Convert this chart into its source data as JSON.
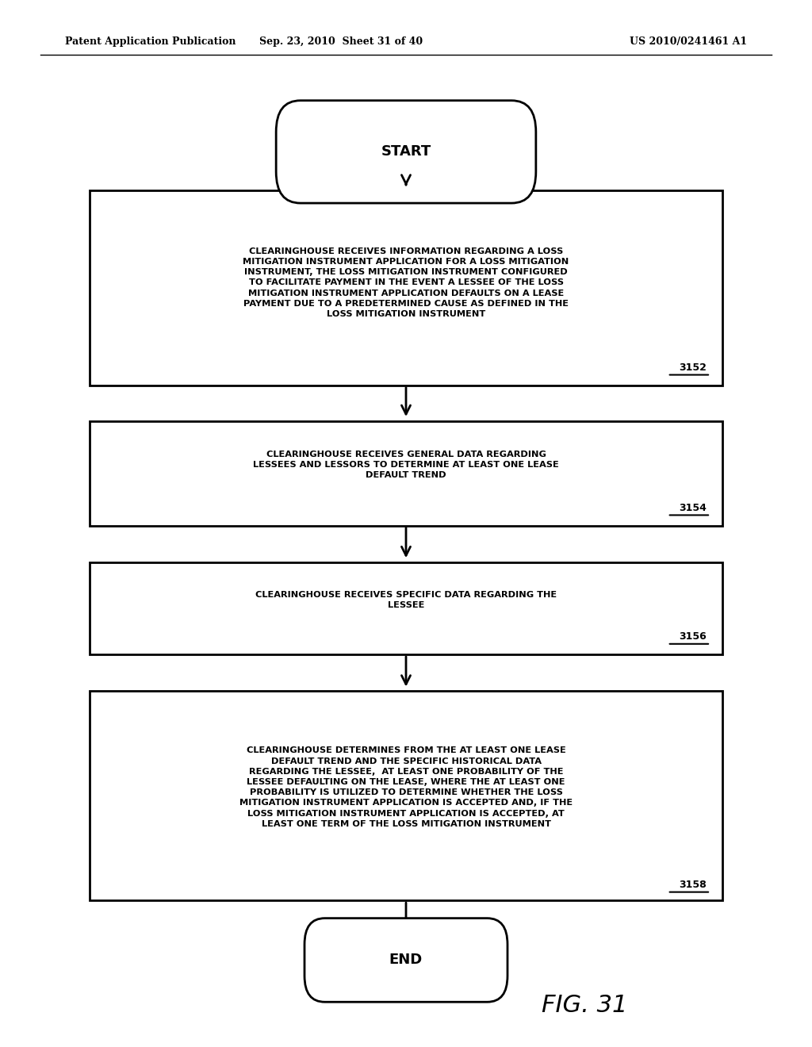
{
  "header_left": "Patent Application Publication",
  "header_mid": "Sep. 23, 2010  Sheet 31 of 40",
  "header_right": "US 2010/0241461 A1",
  "fig_label": "FIG. 31",
  "start_label": "START",
  "end_label": "END",
  "boxes": [
    {
      "id": "3152",
      "text": "CLEARINGHOUSE RECEIVES INFORMATION REGARDING A LOSS\nMITIGATION INSTRUMENT APPLICATION FOR A LOSS MITIGATION\nINSTRUMENT, THE LOSS MITIGATION INSTRUMENT CONFIGURED\nTO FACILITATE PAYMENT IN THE EVENT A LESSEE OF THE LOSS\nMITIGATION INSTRUMENT APPLICATION DEFAULTS ON A LEASE\nPAYMENT DUE TO A PREDETERMINED CAUSE AS DEFINED IN THE\nLOSS MITIGATION INSTRUMENT",
      "ref": "3152"
    },
    {
      "id": "3154",
      "text": "CLEARINGHOUSE RECEIVES GENERAL DATA REGARDING\nLESSEES AND LESSORS TO DETERMINE AT LEAST ONE LEASE\nDEFAULT TREND",
      "ref": "3154"
    },
    {
      "id": "3156",
      "text": "CLEARINGHOUSE RECEIVES SPECIFIC DATA REGARDING THE\nLESSEE",
      "ref": "3156"
    },
    {
      "id": "3158",
      "text": "CLEARINGHOUSE DETERMINES FROM THE AT LEAST ONE LEASE\nDEFAULT TREND AND THE SPECIFIC HISTORICAL DATA\nREGARDING THE LESSEE,  AT LEAST ONE PROBABILITY OF THE\nLESSEE DEFAULTING ON THE LEASE, WHERE THE AT LEAST ONE\nPROBABILITY IS UTILIZED TO DETERMINE WHETHER THE LOSS\nMITIGATION INSTRUMENT APPLICATION IS ACCEPTED AND, IF THE\nLOSS MITIGATION INSTRUMENT APPLICATION IS ACCEPTED, AT\nLEAST ONE TERM OF THE LOSS MITIGATION INSTRUMENT",
      "ref": "3158"
    }
  ],
  "bg_color": "#ffffff",
  "box_edge_color": "#000000",
  "text_color": "#000000",
  "arrow_color": "#000000",
  "font_family": "sans-serif"
}
